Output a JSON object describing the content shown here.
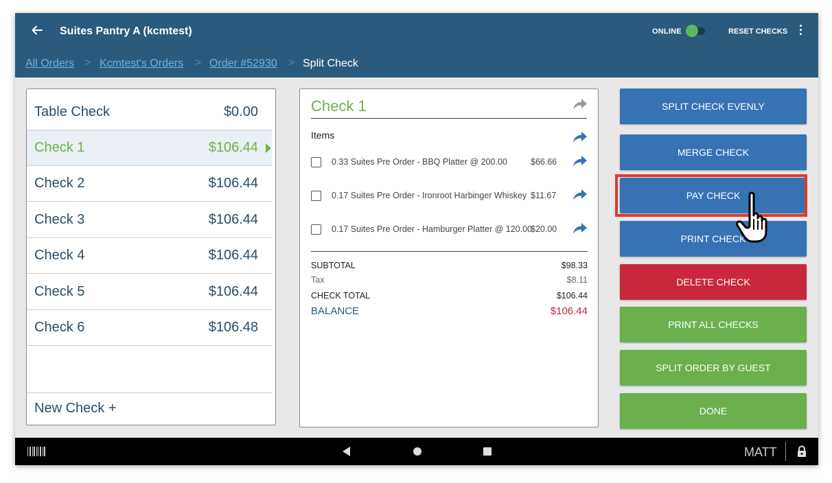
{
  "header": {
    "title": "Suites Pantry A (kcmtest)",
    "online_label": "ONLINE",
    "reset_label": "RESET CHECKS"
  },
  "breadcrumb": {
    "links": [
      "All Orders",
      "Kcmtest's Orders",
      "Order #52930"
    ],
    "current": "Split Check",
    "separator": ">"
  },
  "checks": {
    "rows": [
      {
        "name": "Table Check",
        "amount": "$0.00"
      },
      {
        "name": "Check 1",
        "amount": "$106.44"
      },
      {
        "name": "Check 2",
        "amount": "$106.44"
      },
      {
        "name": "Check 3",
        "amount": "$106.44"
      },
      {
        "name": "Check 4",
        "amount": "$106.44"
      },
      {
        "name": "Check 5",
        "amount": "$106.44"
      },
      {
        "name": "Check 6",
        "amount": "$106.48"
      }
    ],
    "selected_index": 1,
    "new_check_label": "New Check +"
  },
  "detail": {
    "title": "Check 1",
    "items_label": "Items",
    "items": [
      {
        "description": "0.33 Suites Pre Order - BBQ Platter @  200.00",
        "price": "$66.66"
      },
      {
        "description": "0.17 Suites Pre Order - Ironroot Harbinger Whiskey",
        "price": "$11.67"
      },
      {
        "description": "0.17 Suites Pre Order - Hamburger Platter @  120.00",
        "price": "$20.00"
      }
    ],
    "subtotal_label": "SUBTOTAL",
    "subtotal": "$98.33",
    "tax_label": "Tax",
    "tax": "$8.11",
    "total_label": "CHECK TOTAL",
    "total": "$106.44",
    "balance_label": "BALANCE",
    "balance": "$106.44"
  },
  "actions": {
    "split_evenly": "SPLIT CHECK EVENLY",
    "merge": "MERGE CHECK",
    "pay": "PAY CHECK",
    "print": "PRINT CHECK",
    "delete": "DELETE CHECK",
    "print_all": "PRINT ALL CHECKS",
    "split_by_guest": "SPLIT ORDER BY GUEST",
    "done": "DONE"
  },
  "navbar": {
    "user": "MATT"
  },
  "colors": {
    "header_bg": "#2a5b7c",
    "accent_green": "#6fb244",
    "button_blue": "#3672b4",
    "button_red": "#c9283c",
    "button_green": "#6bb04d",
    "balance_red": "#c0283e",
    "highlight_red": "#e03a2b"
  },
  "icons": {
    "back": "arrow-left-icon",
    "menu": "more-vertical-icon",
    "share": "share-forward-icon",
    "barcode": "barcode-icon",
    "lock": "lock-icon",
    "cursor": "hand-pointer-icon"
  }
}
